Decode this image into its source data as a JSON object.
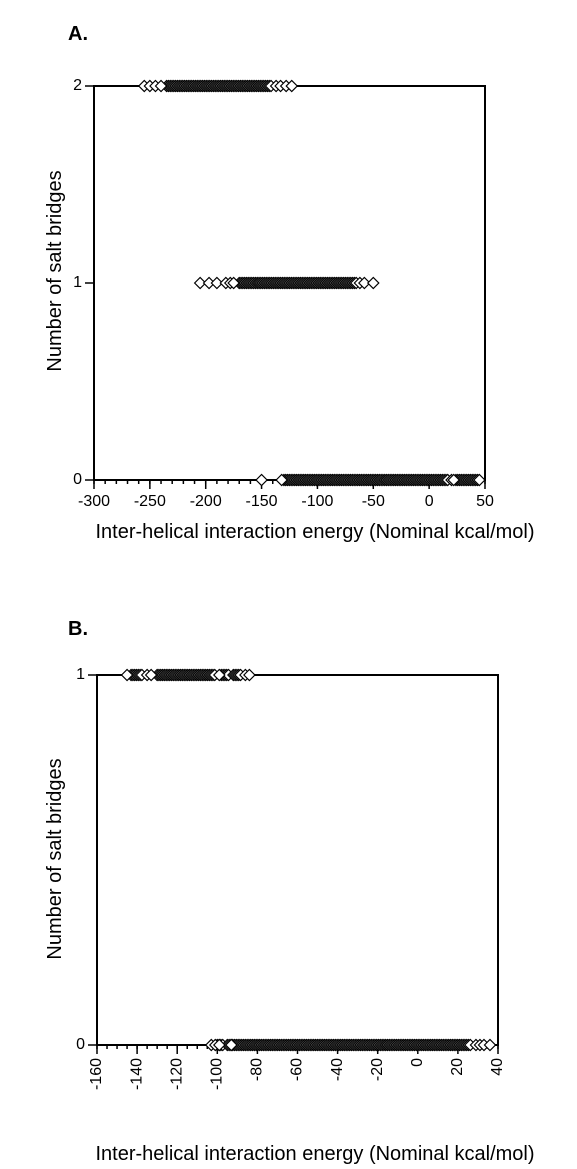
{
  "chart_data": [
    {
      "type": "scatter",
      "panel_label": "A.",
      "xlabel": "Inter-helical interaction energy (Nominal kcal/mol)",
      "ylabel": "Number of salt bridges",
      "xlim": [
        -300,
        50
      ],
      "ylim": [
        0,
        2
      ],
      "x_ticks": [
        -300,
        -250,
        -200,
        -150,
        -100,
        -50,
        0,
        50
      ],
      "x_tick_labels": [
        "-300",
        "-250",
        "-200",
        "-150",
        "-100",
        "-50",
        "0",
        "50"
      ],
      "x_minor_step": 10,
      "x_tick_rotation": 0,
      "y_ticks": [
        0,
        1,
        2
      ],
      "y_tick_labels": [
        "0",
        "1",
        "2"
      ],
      "grid": false,
      "marker": "open-diamond",
      "series": [
        {
          "y": 2,
          "dense_ranges": [
            [
              -235,
              -140
            ]
          ],
          "x": [
            -255,
            -250,
            -245,
            -240,
            -137,
            -133,
            -128,
            -123
          ]
        },
        {
          "y": 1,
          "dense_ranges": [
            [
              -170,
              -65
            ]
          ],
          "x": [
            -205,
            -197,
            -190,
            -182,
            -178,
            -175,
            -62,
            -58,
            -50
          ]
        },
        {
          "y": 0,
          "dense_ranges": [
            [
              -130,
              18
            ],
            [
              24,
              46
            ]
          ],
          "x": [
            -150,
            -132,
            20,
            22
          ]
        }
      ]
    },
    {
      "type": "scatter",
      "panel_label": "B.",
      "xlabel": "Inter-helical interaction energy (Nominal kcal/mol)",
      "ylabel": "Number of salt bridges",
      "xlim": [
        -160,
        40
      ],
      "ylim": [
        0,
        1
      ],
      "x_ticks": [
        -160,
        -140,
        -120,
        -100,
        -80,
        -60,
        -40,
        -20,
        0,
        20,
        40
      ],
      "x_tick_labels": [
        "-160",
        "-140",
        "-120",
        "-100",
        "-80",
        "-60",
        "-40",
        "-20",
        "0",
        "20",
        "40"
      ],
      "x_minor_step": 5,
      "x_tick_rotation": -90,
      "y_ticks": [
        0,
        1
      ],
      "y_tick_labels": [
        "0",
        "1"
      ],
      "grid": false,
      "marker": "open-diamond",
      "series": [
        {
          "y": 1,
          "dense_ranges": [
            [
              -143,
              -137
            ],
            [
              -130,
              -101
            ],
            [
              -98,
              -94
            ],
            [
              -92,
              -88
            ]
          ],
          "x": [
            -145,
            -135,
            -133,
            -99,
            -86,
            -84
          ]
        },
        {
          "y": 0,
          "dense_ranges": [
            [
              -100,
              -97
            ],
            [
              -95,
              27
            ]
          ],
          "x": [
            -103,
            -101,
            -99,
            -93,
            29,
            31,
            33,
            36
          ]
        }
      ]
    }
  ]
}
